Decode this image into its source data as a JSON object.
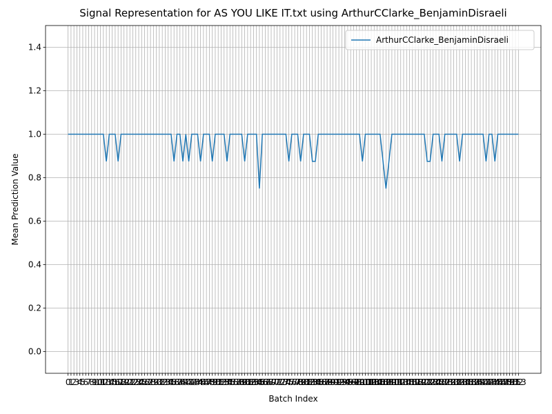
{
  "chart_data": {
    "type": "line",
    "title": "Signal Representation for AS YOU LIKE IT.txt using ArthurCClarke_BenjaminDisraeli",
    "xlabel": "Batch Index",
    "ylabel": "Mean Prediction Value",
    "x": [
      0,
      1,
      2,
      3,
      4,
      5,
      6,
      7,
      8,
      9,
      10,
      11,
      12,
      13,
      14,
      15,
      16,
      17,
      18,
      19,
      20,
      21,
      22,
      23,
      24,
      25,
      26,
      27,
      28,
      29,
      30,
      31,
      32,
      33,
      34,
      35,
      36,
      37,
      38,
      39,
      40,
      41,
      42,
      43,
      44,
      45,
      46,
      47,
      48,
      49,
      50,
      51,
      52,
      53,
      54,
      55,
      56,
      57,
      58,
      59,
      60,
      61,
      62,
      63,
      64,
      65,
      66,
      67,
      68,
      69,
      70,
      71,
      72,
      73,
      74,
      75,
      76,
      77,
      78,
      79,
      80,
      81,
      82,
      83,
      84,
      85,
      86,
      87,
      88,
      89,
      90,
      91,
      92,
      93,
      94,
      95,
      96,
      97,
      98,
      99,
      100,
      101,
      102,
      103,
      104,
      105,
      106,
      107,
      108,
      109,
      110,
      111,
      112,
      113,
      114,
      115,
      116,
      117,
      118,
      119,
      120,
      121,
      122,
      123,
      124,
      125,
      126,
      127,
      128,
      129,
      130,
      131,
      132,
      133,
      134,
      135,
      136,
      137,
      138,
      139,
      140,
      141,
      142,
      143,
      144,
      145,
      146,
      147,
      148,
      149,
      150,
      151,
      152,
      153
    ],
    "series": [
      {
        "name": "ArthurCClarke_BenjaminDisraeli",
        "color": "#1f77b4",
        "values": [
          1,
          1,
          1,
          1,
          1,
          1,
          1,
          1,
          1,
          1,
          1,
          1,
          1,
          0.875,
          1,
          1,
          1,
          0.875,
          1,
          1,
          1,
          1,
          1,
          1,
          1,
          1,
          1,
          1,
          1,
          1,
          1,
          1,
          1,
          1,
          1,
          1,
          0.875,
          1,
          1,
          0.875,
          1,
          0.875,
          1,
          1,
          1,
          0.875,
          1,
          1,
          1,
          0.875,
          1,
          1,
          1,
          1,
          0.875,
          1,
          1,
          1,
          1,
          1,
          0.875,
          1,
          1,
          1,
          1,
          0.75,
          1,
          1,
          1,
          1,
          1,
          1,
          1,
          1,
          1,
          0.875,
          1,
          1,
          1,
          0.875,
          1,
          1,
          1,
          0.875,
          0.875,
          1,
          1,
          1,
          1,
          1,
          1,
          1,
          1,
          1,
          1,
          1,
          1,
          1,
          1,
          1,
          0.875,
          1,
          1,
          1,
          1,
          1,
          1,
          0.875,
          0.75,
          0.875,
          1,
          1,
          1,
          1,
          1,
          1,
          1,
          1,
          1,
          1,
          1,
          1,
          0.875,
          0.875,
          1,
          1,
          1,
          0.875,
          1,
          1,
          1,
          1,
          1,
          0.875,
          1,
          1,
          1,
          1,
          1,
          1,
          1,
          1,
          0.875,
          1,
          1,
          0.875,
          1,
          1,
          1,
          1,
          1,
          1,
          1,
          1
        ]
      }
    ],
    "xlim": [
      -7.65,
      160.65
    ],
    "xticks": [
      0,
      1,
      2,
      3,
      4,
      5,
      6,
      7,
      8,
      9,
      10,
      11,
      12,
      13,
      14,
      15,
      16,
      17,
      18,
      19,
      20,
      21,
      22,
      23,
      24,
      25,
      26,
      27,
      28,
      29,
      30,
      31,
      32,
      33,
      34,
      35,
      36,
      37,
      38,
      39,
      40,
      41,
      42,
      43,
      44,
      45,
      46,
      47,
      48,
      49,
      50,
      51,
      52,
      53,
      54,
      55,
      56,
      57,
      58,
      59,
      60,
      61,
      62,
      63,
      64,
      65,
      66,
      67,
      68,
      69,
      70,
      71,
      72,
      73,
      74,
      75,
      76,
      77,
      78,
      79,
      80,
      81,
      82,
      83,
      84,
      85,
      86,
      87,
      88,
      89,
      90,
      91,
      92,
      93,
      94,
      95,
      96,
      97,
      98,
      99,
      100,
      101,
      102,
      103,
      104,
      105,
      106,
      107,
      108,
      109,
      110,
      111,
      112,
      113,
      114,
      115,
      116,
      117,
      118,
      119,
      120,
      121,
      122,
      123,
      124,
      125,
      126,
      127,
      128,
      129,
      130,
      131,
      132,
      133,
      134,
      135,
      136,
      137,
      138,
      139,
      140,
      141,
      142,
      143,
      144,
      145,
      146,
      147,
      148,
      149,
      150,
      151,
      152,
      153
    ],
    "ylim": [
      -0.1,
      1.5
    ],
    "yticks": [
      {
        "value": 0,
        "label": "0.0"
      },
      {
        "value": 0.2,
        "label": "0.2"
      },
      {
        "value": 0.4,
        "label": "0.4"
      },
      {
        "value": 0.6,
        "label": "0.6"
      },
      {
        "value": 0.8,
        "label": "0.8"
      },
      {
        "value": 1,
        "label": "1.0"
      },
      {
        "value": 1.2,
        "label": "1.2"
      },
      {
        "value": 1.4,
        "label": "1.4"
      }
    ],
    "grid": true,
    "legend": "upper right"
  }
}
